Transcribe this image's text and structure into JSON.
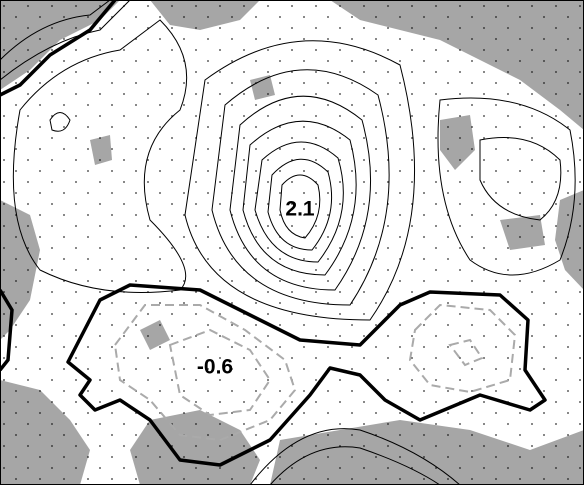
{
  "labels": [
    "2.1",
    "-0.6"
  ]
}
